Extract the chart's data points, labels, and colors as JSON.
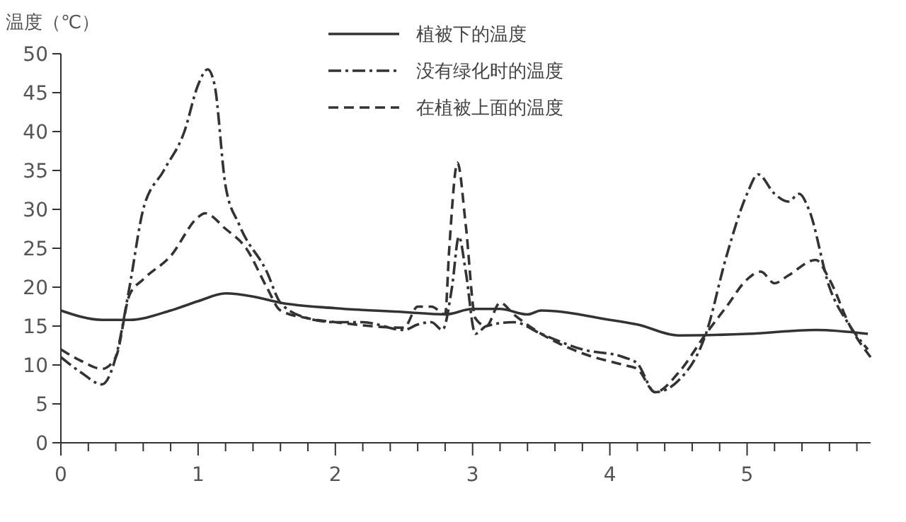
{
  "chart_data": {
    "type": "line",
    "ylabel": "温度（℃）",
    "xlim": [
      0,
      5.9
    ],
    "ylim": [
      0,
      50
    ],
    "xticks": [
      0,
      {
        "value": 0.2,
        "label": null
      },
      {
        "value": 0.4,
        "label": null
      },
      {
        "value": 0.6,
        "label": null
      },
      {
        "value": 0.8,
        "label": null
      },
      1,
      {
        "value": 1.2,
        "label": null
      },
      {
        "value": 1.4,
        "label": null
      },
      {
        "value": 1.6,
        "label": null
      },
      {
        "value": 1.8,
        "label": null
      },
      2,
      {
        "value": 2.2,
        "label": null
      },
      {
        "value": 2.4,
        "label": null
      },
      {
        "value": 2.6,
        "label": null
      },
      {
        "value": 2.8,
        "label": null
      },
      3,
      {
        "value": 3.2,
        "label": null
      },
      {
        "value": 3.4,
        "label": null
      },
      {
        "value": 3.6,
        "label": null
      },
      {
        "value": 3.8,
        "label": null
      },
      4,
      {
        "value": 4.2,
        "label": null
      },
      {
        "value": 4.4,
        "label": null
      },
      {
        "value": 4.6,
        "label": null
      },
      {
        "value": 4.8,
        "label": null
      },
      5,
      {
        "value": 5.2,
        "label": null
      },
      {
        "value": 5.4,
        "label": null
      },
      {
        "value": 5.6,
        "label": null
      },
      {
        "value": 5.8,
        "label": null
      }
    ],
    "yticks": [
      0,
      5,
      10,
      15,
      20,
      25,
      30,
      35,
      40,
      45,
      50
    ],
    "grid": false,
    "legend": "top",
    "series": [
      {
        "name": "植被下的温度",
        "color": "#333333",
        "line_style": "solid",
        "x": [
          0,
          0.3,
          0.5,
          0.8,
          1.0,
          1.2,
          1.4,
          1.6,
          2.0,
          2.5,
          2.8,
          3.0,
          3.2,
          3.4,
          3.5,
          4.0,
          4.2,
          4.5,
          5.0,
          5.5,
          5.88
        ],
        "values": [
          17,
          15.8,
          15.8,
          17,
          18.2,
          19.2,
          18.8,
          18,
          17.3,
          16.8,
          16.5,
          17.2,
          17.2,
          16.5,
          17,
          15.8,
          15.2,
          13.8,
          14,
          14.5,
          14
        ]
      },
      {
        "name": "没有绿化时的温度",
        "color": "#333333",
        "line_style": "dashdot",
        "x": [
          0,
          0.15,
          0.3,
          0.4,
          0.5,
          0.6,
          0.75,
          0.9,
          1.0,
          1.07,
          1.12,
          1.2,
          1.3,
          1.5,
          1.6,
          1.8,
          2.0,
          2.2,
          2.5,
          2.6,
          2.7,
          2.78,
          2.85,
          2.9,
          2.95,
          3.02,
          3.1,
          3.3,
          3.5,
          3.8,
          4.1,
          4.2,
          4.33,
          4.5,
          4.7,
          4.85,
          5.0,
          5.08,
          5.2,
          5.3,
          5.38,
          5.45,
          5.6,
          5.75,
          5.88
        ],
        "values": [
          11,
          9,
          7.5,
          11,
          20,
          30,
          35,
          40,
          46,
          48,
          46,
          33,
          28,
          22,
          18,
          16,
          15.5,
          15.5,
          14.5,
          15.2,
          15.5,
          14.5,
          20,
          26.5,
          22,
          14,
          15,
          15.5,
          14,
          12,
          11,
          10.2,
          6.5,
          8,
          14,
          24,
          32,
          34.5,
          32,
          31,
          32,
          30,
          20,
          15,
          12
        ]
      },
      {
        "name": "在植被上面的温度",
        "color": "#333333",
        "line_style": "dashed",
        "x": [
          0,
          0.15,
          0.3,
          0.4,
          0.5,
          0.6,
          0.8,
          1.0,
          1.05,
          1.2,
          1.35,
          1.5,
          1.6,
          1.8,
          2.0,
          2.5,
          2.6,
          2.7,
          2.8,
          2.83,
          2.89,
          2.95,
          3.02,
          3.1,
          3.2,
          3.3,
          3.5,
          3.8,
          4.1,
          4.2,
          4.33,
          4.5,
          4.7,
          4.85,
          5.0,
          5.1,
          5.2,
          5.3,
          5.5,
          5.6,
          5.75,
          5.9
        ],
        "values": [
          12,
          10.5,
          9.5,
          11,
          19,
          21,
          24,
          29,
          29.5,
          27.5,
          25,
          20,
          17,
          16,
          15.5,
          14.8,
          17.5,
          17.5,
          16.5,
          25,
          36,
          28,
          16,
          15,
          18,
          16.5,
          14,
          11.5,
          10,
          9.5,
          6.5,
          9,
          14,
          17.5,
          21,
          22,
          20.5,
          21.5,
          23.5,
          21,
          15,
          11
        ]
      }
    ]
  }
}
